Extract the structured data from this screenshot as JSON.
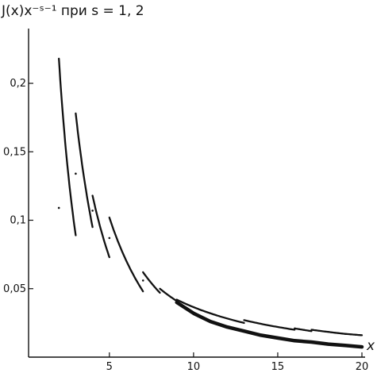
{
  "chart_data": {
    "type": "line",
    "title": "J(x)x⁻ˢ⁻¹ при s = 1, 2",
    "xlabel": "x",
    "ylabel": "",
    "xlim": [
      0.2,
      20
    ],
    "ylim": [
      0,
      0.24
    ],
    "grid": false,
    "x_ticks": [
      {
        "value": 5,
        "label": "5"
      },
      {
        "value": 10,
        "label": "10"
      },
      {
        "value": 15,
        "label": "15"
      },
      {
        "value": 20,
        "label": "20"
      }
    ],
    "y_ticks": [
      {
        "value": 0.05,
        "label": "0,05"
      },
      {
        "value": 0.1,
        "label": "0,1"
      },
      {
        "value": 0.15,
        "label": "0,15"
      },
      {
        "value": 0.2,
        "label": "0,2"
      }
    ],
    "series": [
      {
        "segments": [
          {
            "x0": 2,
            "x1": 3,
            "y0": 0.218,
            "y1": 0.089
          },
          {
            "x0": 3,
            "x1": 4,
            "y0": 0.178,
            "y1": 0.095
          },
          {
            "x0": 4,
            "x1": 5,
            "y0": 0.118,
            "y1": 0.073
          },
          {
            "x0": 5,
            "x1": 7,
            "y0": 0.102,
            "y1": 0.048
          },
          {
            "x0": 7,
            "x1": 8,
            "y0": 0.062,
            "y1": 0.047
          },
          {
            "x0": 8,
            "x1": 9,
            "y0": 0.05,
            "y1": 0.041
          },
          {
            "x0": 9,
            "x1": 11,
            "y0": 0.042,
            "y1": 0.032
          },
          {
            "x0": 11,
            "x1": 13,
            "y0": 0.032,
            "y1": 0.025
          },
          {
            "x0": 13,
            "x1": 16,
            "y0": 0.027,
            "y1": 0.02
          },
          {
            "x0": 16,
            "x1": 17,
            "y0": 0.021,
            "y1": 0.019
          },
          {
            "x0": 17,
            "x1": 19,
            "y0": 0.02,
            "y1": 0.017
          },
          {
            "x0": 19,
            "x1": 20,
            "y0": 0.017,
            "y1": 0.016
          }
        ]
      },
      {
        "smooth": [
          {
            "x": 9,
            "y": 0.04
          },
          {
            "x": 10,
            "y": 0.032
          },
          {
            "x": 11,
            "y": 0.026
          },
          {
            "x": 12,
            "y": 0.022
          },
          {
            "x": 13,
            "y": 0.019
          },
          {
            "x": 14,
            "y": 0.016
          },
          {
            "x": 15,
            "y": 0.014
          },
          {
            "x": 16,
            "y": 0.012
          },
          {
            "x": 17,
            "y": 0.011
          },
          {
            "x": 18,
            "y": 0.0095
          },
          {
            "x": 19,
            "y": 0.0085
          },
          {
            "x": 20,
            "y": 0.0075
          }
        ]
      },
      {
        "points": [
          {
            "x": 2.0,
            "y": 0.109
          },
          {
            "x": 3.0,
            "y": 0.134
          },
          {
            "x": 4.0,
            "y": 0.107
          },
          {
            "x": 5.0,
            "y": 0.087
          },
          {
            "x": 7.0,
            "y": 0.056
          }
        ]
      }
    ]
  }
}
